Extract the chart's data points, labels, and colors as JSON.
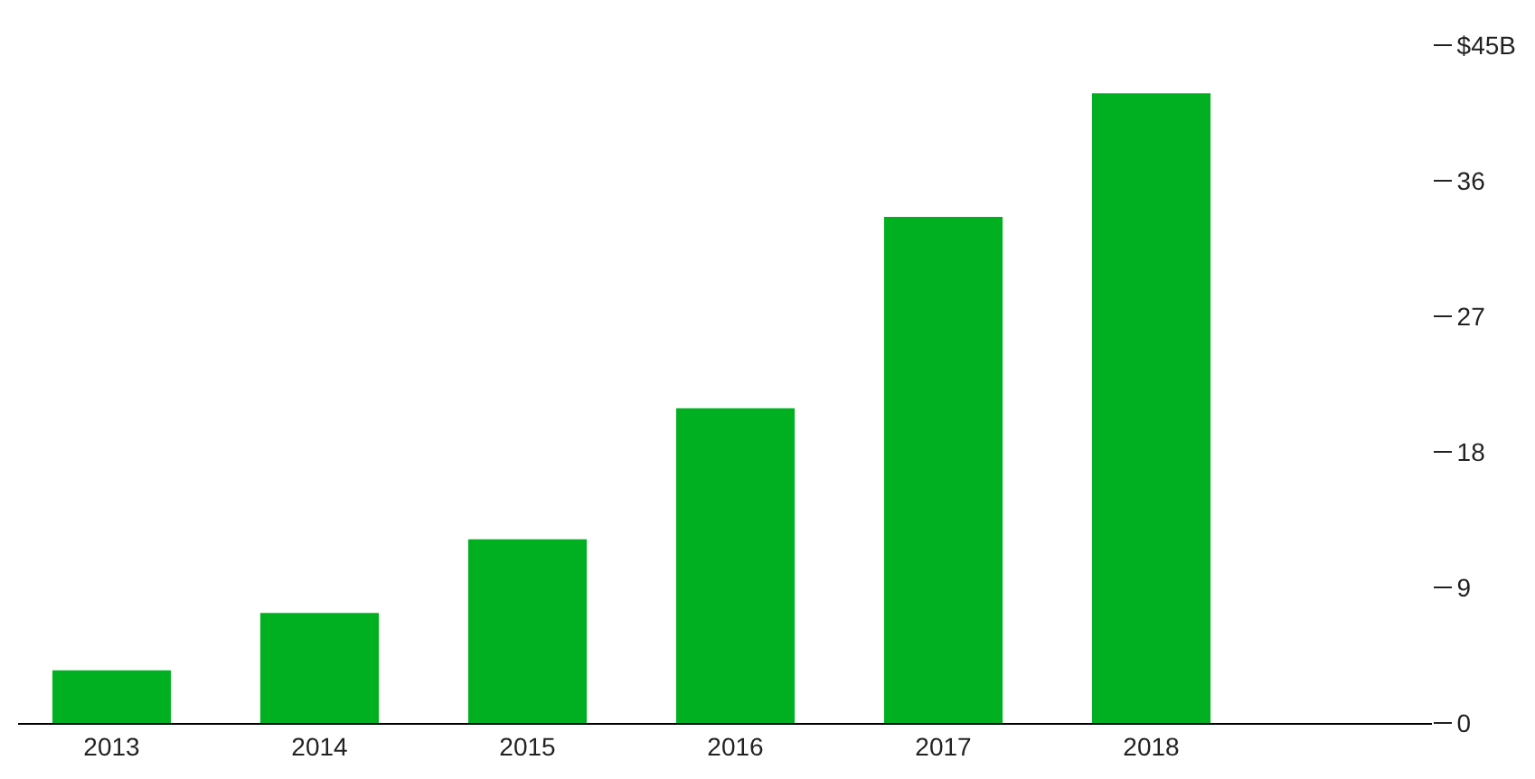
{
  "chart_data": {
    "type": "bar",
    "categories": [
      "2013",
      "2014",
      "2015",
      "2016",
      "2017",
      "2018"
    ],
    "values": [
      3.5,
      7.3,
      12.2,
      20.9,
      33.6,
      41.8
    ],
    "color": "#00b020",
    "ylim": [
      0,
      45
    ],
    "yticks": [
      0,
      9,
      18,
      27,
      36,
      {
        "value": 45,
        "label": "$45B"
      }
    ]
  }
}
